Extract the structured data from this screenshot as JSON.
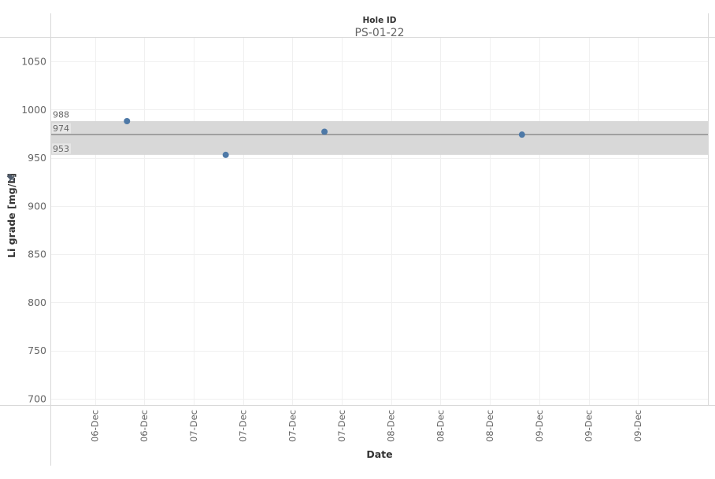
{
  "header": {
    "field_label": "Hole ID",
    "field_value": "PS-01-22"
  },
  "chart_data": {
    "type": "scatter",
    "xlabel": "Date",
    "ylabel": "Li grade [mg/L]",
    "ylim": [
      700,
      1050
    ],
    "yticks": [
      700,
      750,
      800,
      850,
      900,
      950,
      1000,
      1050
    ],
    "xticks": [
      "06-Dec",
      "06-Dec",
      "07-Dec",
      "07-Dec",
      "07-Dec",
      "07-Dec",
      "08-Dec",
      "08-Dec",
      "08-Dec",
      "09-Dec",
      "09-Dec",
      "09-Dec"
    ],
    "points": [
      {
        "x_index": 0.65,
        "y": 988
      },
      {
        "x_index": 2.65,
        "y": 953
      },
      {
        "x_index": 4.65,
        "y": 977
      },
      {
        "x_index": 8.65,
        "y": 974
      },
      {
        "x_index": 12.65,
        "y": 978
      }
    ],
    "reference_band": {
      "upper": 988,
      "mean": 974,
      "lower": 953
    },
    "reference_labels": [
      "988",
      "974",
      "953"
    ],
    "grid": true,
    "colors": {
      "point": "#4e79a7",
      "band": "#d6d6d6",
      "mean_line": "#7f7f7f",
      "grid": "#f0f0f0",
      "border": "#d9d9d9"
    },
    "ylabel_icon": "pin-icon"
  }
}
